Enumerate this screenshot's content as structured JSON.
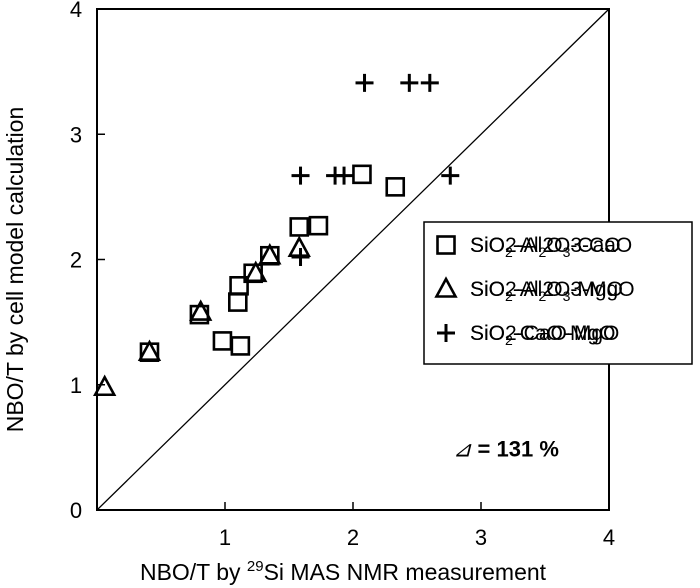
{
  "chart_data": {
    "type": "scatter",
    "xlabel_parts": [
      "NBO/T by ",
      "29",
      "Si MAS NMR measurement"
    ],
    "ylabel": "NBO/T by cell model calculation",
    "xlim": [
      0,
      4
    ],
    "ylim": [
      0,
      4
    ],
    "x_ticks": [
      0,
      1,
      2,
      3,
      4
    ],
    "y_ticks": [
      0,
      1,
      2,
      3,
      4
    ],
    "x_tick_labels": [
      "",
      "1",
      "2",
      "3",
      "4"
    ],
    "y_tick_labels": [
      "0",
      "1",
      "2",
      "3",
      "4"
    ],
    "grid": false,
    "reference_line": {
      "from": [
        0,
        0
      ],
      "to": [
        4,
        4
      ]
    },
    "legend_position": "right",
    "series": [
      {
        "name": "SiO2-Al2O3-CaO",
        "name_parts": [
          [
            "SiO",
            ""
          ],
          [
            "2",
            "sub"
          ],
          [
            "-Al",
            ""
          ],
          [
            "2",
            "sub"
          ],
          [
            "O",
            ""
          ],
          [
            "3",
            "sub"
          ],
          [
            "-CaO",
            ""
          ]
        ],
        "marker": "square",
        "x": [
          0.41,
          0.8,
          0.98,
          1.1,
          1.11,
          1.12,
          1.22,
          1.35,
          1.58,
          1.73,
          2.07,
          2.33
        ],
        "y": [
          1.26,
          1.56,
          1.35,
          1.66,
          1.79,
          1.31,
          1.89,
          2.03,
          2.26,
          2.27,
          2.68,
          2.58
        ]
      },
      {
        "name": "SiO2-Al2O3-MgO",
        "name_parts": [
          [
            "SiO",
            ""
          ],
          [
            "2",
            "sub"
          ],
          [
            "-Al",
            ""
          ],
          [
            "2",
            "sub"
          ],
          [
            "O",
            ""
          ],
          [
            "3",
            "sub"
          ],
          [
            "-MgO",
            ""
          ]
        ],
        "marker": "triangle",
        "x": [
          0.06,
          0.41,
          0.81,
          1.24,
          1.35,
          1.58
        ],
        "y": [
          0.98,
          1.26,
          1.58,
          1.89,
          2.03,
          2.09
        ]
      },
      {
        "name": "SiO2-CaO-MgO",
        "name_parts": [
          [
            "SiO",
            ""
          ],
          [
            "2",
            "sub"
          ],
          [
            "-CaO-MgO",
            ""
          ]
        ],
        "marker": "plus",
        "x": [
          1.59,
          1.59,
          1.86,
          1.93,
          2.09,
          2.44,
          2.6,
          2.76
        ],
        "y": [
          2.67,
          2.02,
          2.67,
          2.67,
          3.41,
          3.41,
          3.41,
          2.67
        ]
      }
    ],
    "annotation": {
      "symbol": "⊿",
      "text": "= 131 %",
      "x": 3.0,
      "y": 0.65
    }
  }
}
